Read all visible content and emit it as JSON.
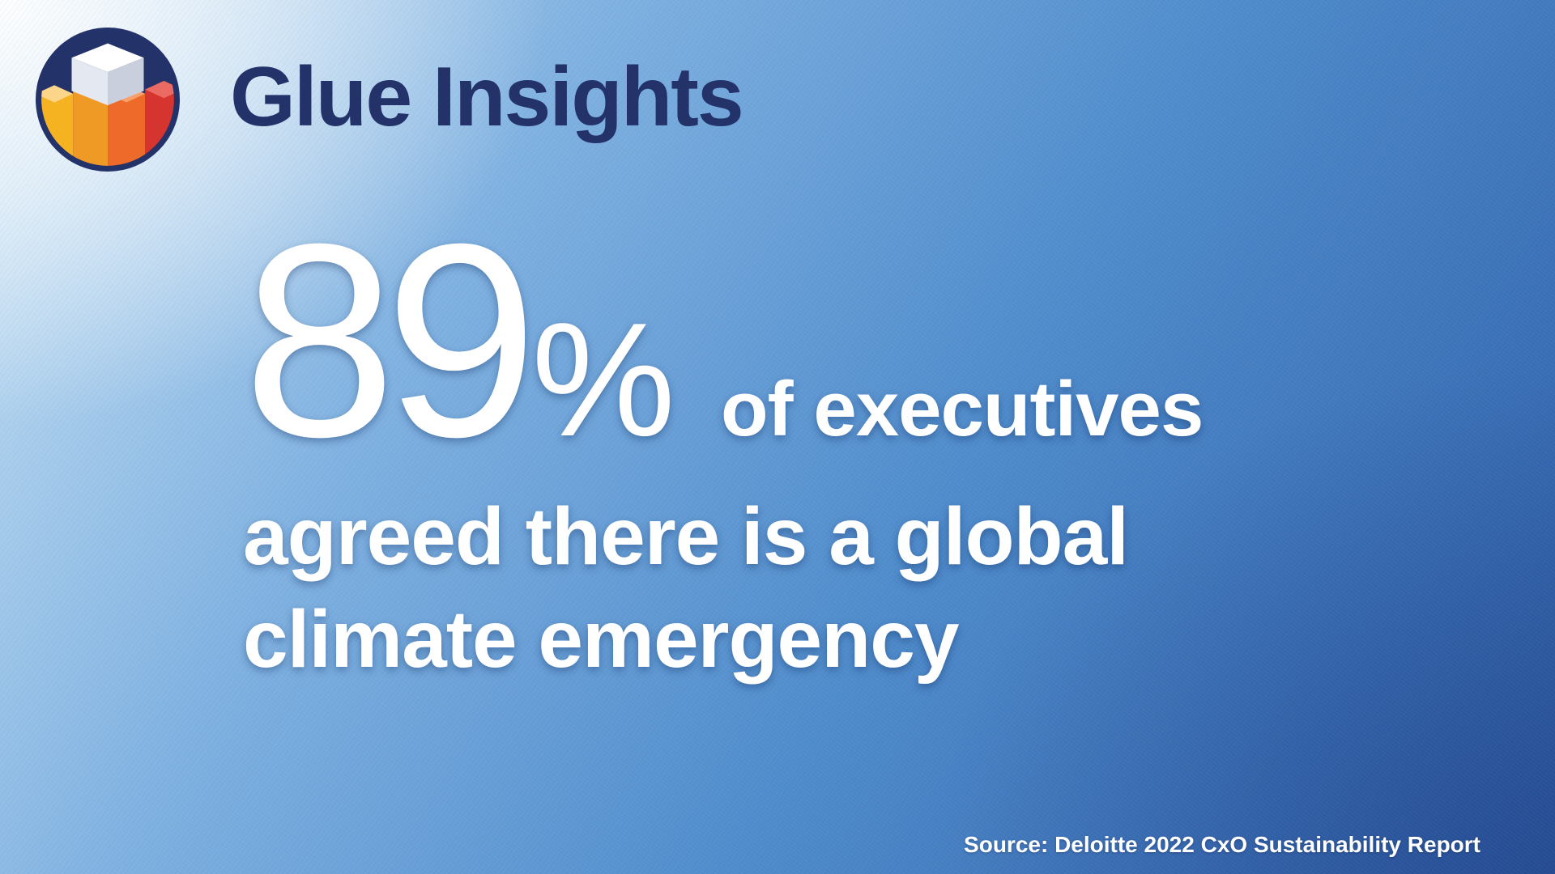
{
  "brand": {
    "name": "Glue Insights",
    "logo_icon": "stacked-cube-bar-logo-icon",
    "name_color": "#233269"
  },
  "headline": {
    "stat_number": "89",
    "stat_percent": "%",
    "stat_suffix": "of executives",
    "line_2": "agreed there is a global",
    "line_3": "climate emergency",
    "text_color": "#ffffff"
  },
  "source": {
    "text": "Source: Deloitte 2022 CxO Sustainability Report"
  },
  "colors": {
    "background_light": "#c9e3f5",
    "background_dark": "#2f5ea6",
    "logo_ring": "#233269",
    "logo_yellow": "#f6b321",
    "logo_orange": "#ef7a2b",
    "logo_red": "#d5342f"
  }
}
